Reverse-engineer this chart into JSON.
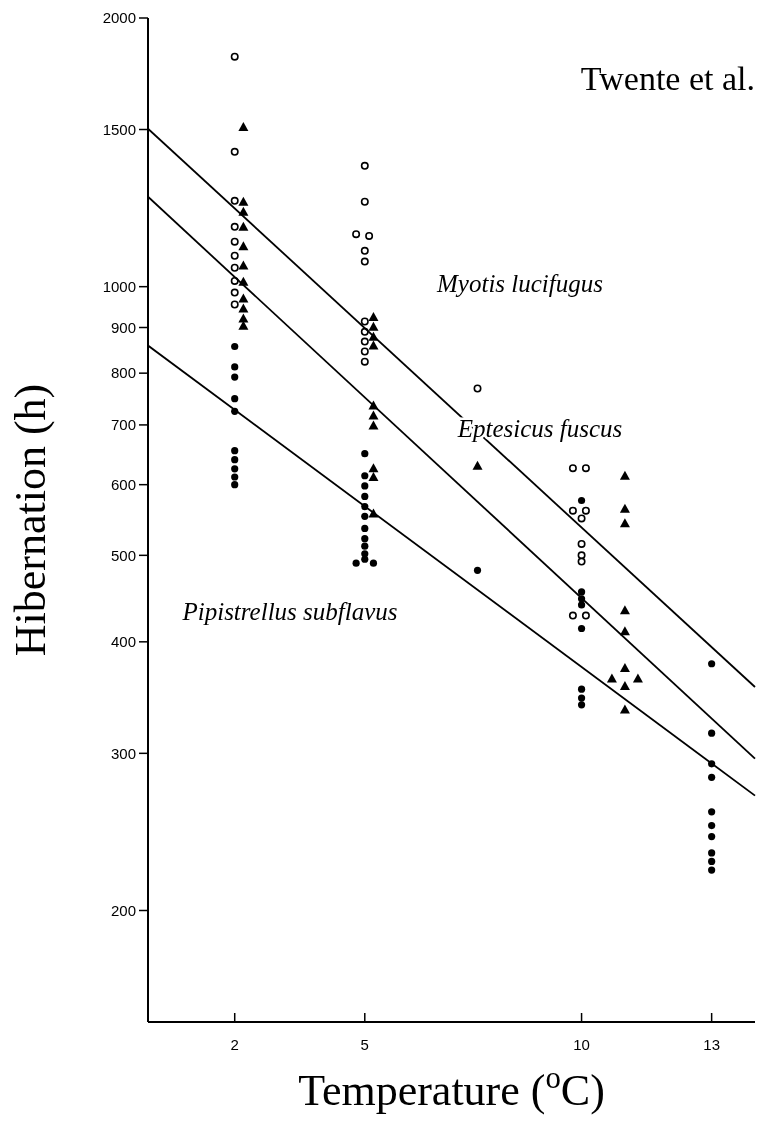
{
  "chart_data": {
    "type": "scatter",
    "xlabel": "Temperature ($^{o}$C)",
    "ylabel": "Hibernation (h)",
    "log": "y",
    "xlim": [
      0,
      14
    ],
    "ylim": [
      150,
      2000
    ],
    "xticks": [
      2,
      5,
      10,
      13
    ],
    "yticks": [
      200,
      300,
      400,
      500,
      600,
      700,
      800,
      900,
      1000,
      1500,
      2000
    ],
    "grid": false,
    "annotations": [
      "Twente et al.",
      "Myotis lucifugus",
      "Eptesicus fuscus",
      "Pipistrellus subflavus"
    ],
    "series": [
      {
        "marker": "circle",
        "color": "#ffffff",
        "x": [
          2,
          2,
          2,
          2,
          2,
          2,
          2,
          2,
          2,
          2,
          5,
          5,
          4.8,
          5.1,
          5,
          5,
          5,
          5,
          5,
          5,
          5,
          7.6,
          9.8,
          10.1,
          9.8,
          10.1,
          10,
          10,
          10,
          10,
          9.8,
          10.1
        ],
        "values": [
          1810,
          1416,
          1248,
          1167,
          1123,
          1083,
          1050,
          1015,
          985,
          955,
          1366,
          1245,
          1145,
          1140,
          1097,
          1067,
          914,
          890,
          868,
          846,
          824,
          769,
          626,
          626,
          561,
          561,
          550,
          515,
          500,
          492,
          428,
          428
        ]
      },
      {
        "marker": "triangle",
        "color": "#000000",
        "x": [
          2.2,
          2.2,
          2.2,
          2.2,
          2.2,
          2.2,
          2.2,
          2.2,
          2.2,
          2.2,
          2.2,
          5.2,
          5.2,
          5.2,
          5.2,
          5.2,
          5.2,
          5.2,
          5.2,
          5.2,
          5.2,
          7.6,
          11,
          11,
          11,
          11,
          11,
          11,
          10.7,
          11.3,
          11,
          11
        ],
        "values": [
          1510,
          1245,
          1213,
          1167,
          1110,
          1056,
          1013,
          970,
          945,
          921,
          904,
          925,
          902,
          879,
          859,
          736,
          717,
          699,
          626,
          612,
          557,
          630,
          614,
          564,
          543,
          434,
          411,
          374,
          364,
          364,
          357,
          336
        ]
      },
      {
        "marker": "circle",
        "color": "#000000",
        "x": [
          2,
          2,
          2,
          2,
          2,
          2,
          2,
          2,
          2,
          2,
          5,
          5,
          5,
          5,
          5,
          5,
          5,
          5,
          5,
          5,
          5,
          4.8,
          5.2,
          7.6,
          10,
          10,
          10,
          10,
          10,
          10,
          10,
          10,
          13,
          13,
          13,
          13,
          13,
          13,
          13,
          13,
          13,
          13
        ],
        "values": [
          857,
          813,
          792,
          749,
          725,
          655,
          640,
          625,
          612,
          600,
          650,
          614,
          598,
          582,
          567,
          553,
          536,
          522,
          512,
          502,
          495,
          490,
          490,
          481,
          576,
          455,
          447,
          440,
          414,
          354,
          346,
          340,
          378,
          316,
          292,
          282,
          258,
          249,
          242,
          232,
          227,
          222
        ]
      },
      {
        "type": "line",
        "color": "#000000",
        "x": [
          0,
          14
        ],
        "values": [
          1503,
          356
        ]
      },
      {
        "type": "line",
        "color": "#000000",
        "x": [
          0,
          14
        ],
        "values": [
          1261,
          296
        ]
      },
      {
        "type": "line",
        "color": "#000000",
        "x": [
          0,
          14
        ],
        "values": [
          859,
          269
        ]
      }
    ]
  }
}
